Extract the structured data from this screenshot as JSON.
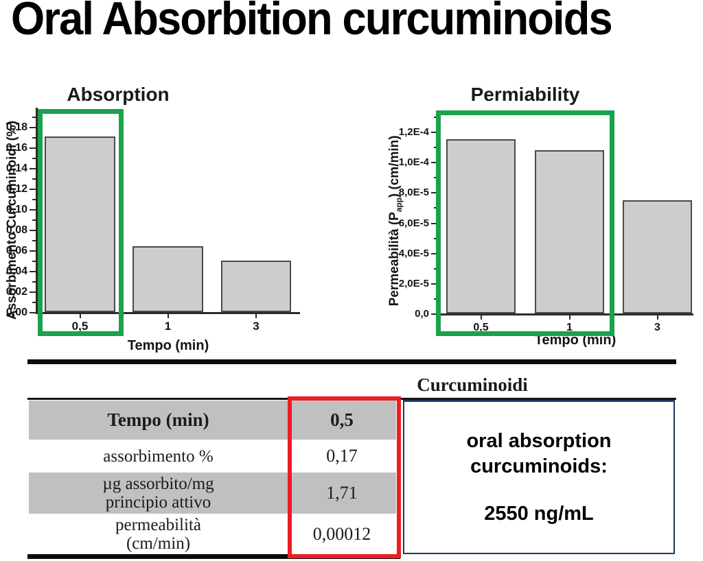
{
  "page": {
    "title": "Oral Absorbition curcuminoids"
  },
  "chart_data": [
    {
      "type": "bar",
      "title": "Absorption",
      "categories": [
        "0,5",
        "1",
        "3"
      ],
      "values": [
        0.171,
        0.064,
        0.05
      ],
      "xlabel": "Tempo (min)",
      "ylabel": "Assorbimento Curcuminoidi (%)",
      "ylim": [
        0,
        0.198
      ],
      "yticks": [
        {
          "v": 0.0,
          "label": "0,00"
        },
        {
          "v": 0.02,
          "label": "0,02"
        },
        {
          "v": 0.04,
          "label": "0,04"
        },
        {
          "v": 0.06,
          "label": "0,06"
        },
        {
          "v": 0.08,
          "label": "0,08"
        },
        {
          "v": 0.1,
          "label": "0,10"
        },
        {
          "v": 0.12,
          "label": "0,12"
        },
        {
          "v": 0.14,
          "label": "0,14"
        },
        {
          "v": 0.16,
          "label": "0,16"
        },
        {
          "v": 0.18,
          "label": "0,18"
        }
      ],
      "legend": "none",
      "grid": false,
      "annotation": "green highlight box around the 0,5 min bar"
    },
    {
      "type": "bar",
      "title": "Permiability",
      "categories": [
        "0,5",
        "1",
        "3"
      ],
      "values": [
        0.000115,
        0.000108,
        7.45e-05
      ],
      "xlabel": "Tempo (min)",
      "ylabel": "Permeabilità (Papp) (cm/min)",
      "ylabel_parts": [
        "Permeabilità (P",
        "app",
        ") (cm/min)"
      ],
      "ylim": [
        0,
        0.000132
      ],
      "yticks": [
        {
          "v": 0,
          "label": "0,0"
        },
        {
          "v": 2e-05,
          "label": "2,0E-5"
        },
        {
          "v": 4e-05,
          "label": "4,0E-5"
        },
        {
          "v": 6e-05,
          "label": "6,0E-5"
        },
        {
          "v": 8e-05,
          "label": "8,0E-5"
        },
        {
          "v": 0.0001,
          "label": "1,0E-4"
        },
        {
          "v": 0.00012,
          "label": "1,2E-4"
        }
      ],
      "legend": "none",
      "grid": false,
      "annotation": "green highlight box around the 0,5 and 1 min bars"
    }
  ],
  "table": {
    "header": "Curcuminoidi",
    "rows": [
      {
        "label": "Tempo (min)",
        "value": "0,5"
      },
      {
        "label": "assorbimento %",
        "value": "0,17"
      },
      {
        "label": "µg assorbito/mg\nprincipio attivo",
        "value": "1,71"
      },
      {
        "label": "permeabilità\n(cm/min)",
        "value": "0,00012"
      }
    ],
    "note": {
      "line1": "oral absorption",
      "line2": "curcuminoids:",
      "value": "2550 ng/mL"
    },
    "annotation": "red highlight box around the values column"
  },
  "colors": {
    "highlight_green": "#1aa24c",
    "highlight_red": "#ee1c24",
    "navy": "#1f3864",
    "row_gray": "#c0c0c0",
    "bar_fill": "#cdcdcd",
    "bar_border": "#4a4a4a"
  }
}
